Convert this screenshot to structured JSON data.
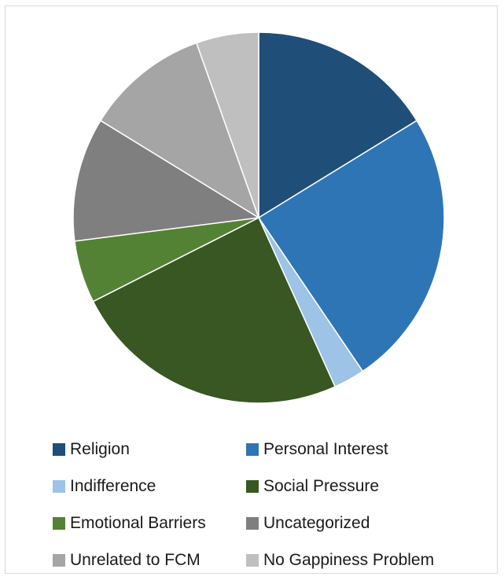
{
  "chart_data": {
    "type": "pie",
    "title": "",
    "categories": [
      "Religion",
      "Personal Interest",
      "Indifference",
      "Social Pressure",
      "Emotional Barriers",
      "Uncategorized",
      "Unrelated to FCM",
      "No Gappiness Problem"
    ],
    "values": [
      16.7,
      25.0,
      2.8,
      25.0,
      5.6,
      11.1,
      11.1,
      5.6
    ],
    "colors": [
      "#1f4e79",
      "#2e75b6",
      "#9dc3e6",
      "#385723",
      "#548235",
      "#7f7f7f",
      "#a5a5a5",
      "#bfbfbf"
    ],
    "start_angle": "top",
    "direction": "clockwise",
    "legend_position": "bottom"
  }
}
